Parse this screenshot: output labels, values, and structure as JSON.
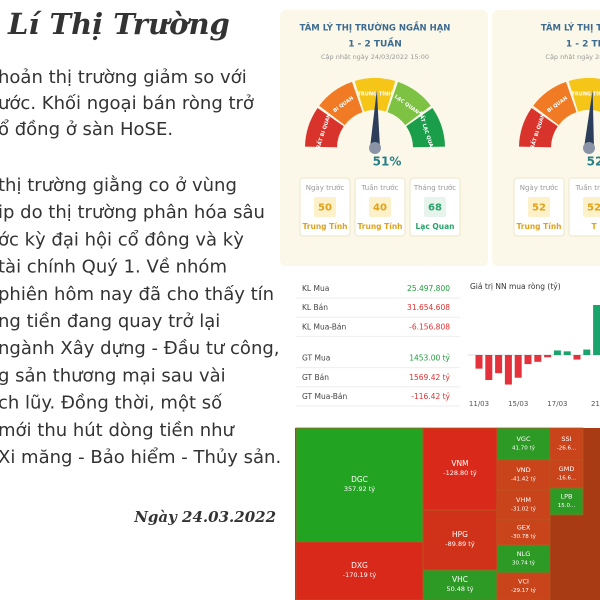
{
  "article": {
    "title": "Lí Thị Trường",
    "lines": [
      "hoản thị trường giảm so với",
      "ước. Khối ngoại bán ròng trở",
      "ổ đồng ở sàn HoSE.",
      "thị trường giằng co ở vùng",
      "ip do thị trường phân hóa sâu",
      "ớc kỳ đại hội cổ đông và kỳ",
      "tài chính Quý 1. Về nhóm",
      "phiên hôm nay đã cho thấy tín",
      "ng tiền đang quay trở lại",
      "ngành Xây dựng - Đầu tư công,",
      "g sản thương mại sau vài",
      "ch lũy. Đồng thời, một số",
      "mới thu hút dòng tiền như",
      "Xi măng - Bảo hiểm - Thủy sản."
    ],
    "date": "Ngày 24.03.2022"
  },
  "sentiment": [
    {
      "title": "TÂM LÝ THỊ TRƯỜNG NGẮN HẠN",
      "period": "1 - 2 TUẦN",
      "updated": "Cập nhật ngày 24/03/2022 15:00",
      "zones": [
        "RẤT BI QUAN",
        "BI QUAN",
        "TRUNG TÍNH",
        "LẠC QUAN",
        "RẤT LẠC QUAN"
      ],
      "value": 51,
      "value_label": "51%",
      "history": [
        {
          "label": "Ngày trước",
          "value": 50,
          "status": "Trung Tính"
        },
        {
          "label": "Tuần trước",
          "value": 40,
          "status": "Trung Tính"
        },
        {
          "label": "Tháng trước",
          "value": 68,
          "status": "Lạc Quan"
        }
      ]
    },
    {
      "title": "TÂM LÝ THỊ TRƯỜNG",
      "period": "1 - 2 THÁ",
      "updated": "Cập nhật ngày 24/03/2022",
      "zones": [
        "RẤT BI QUAN",
        "BI QUAN",
        "TRUNG TÍNH"
      ],
      "value": 52,
      "value_label": "52%",
      "history": [
        {
          "label": "Ngày trước",
          "value": 52,
          "status": "Trung Tính"
        },
        {
          "label": "Tuần trước",
          "value": 52,
          "status": "T"
        }
      ]
    }
  ],
  "foreign": {
    "rows": [
      {
        "label": "KL Mua",
        "value": "25.497.800"
      },
      {
        "label": "KL Bán",
        "value": "31.654.608"
      },
      {
        "label": "KL Mua-Bán",
        "value": "-6.156.808"
      },
      {
        "label": "GT Mua",
        "value": "1453.00 tỷ"
      },
      {
        "label": "GT Bán",
        "value": "1569.42 tỷ"
      },
      {
        "label": "GT Mua-Bán",
        "value": "-116.42 tỷ"
      }
    ],
    "chart_data": {
      "type": "bar",
      "title": "Giá trị NN mua ròng (tỷ)",
      "categories": [
        "11/03",
        null,
        null,
        null,
        "15/03",
        null,
        null,
        null,
        "17/03",
        null,
        null,
        null,
        "21/"
      ],
      "values": [
        -30,
        -55,
        -40,
        -65,
        -50,
        -20,
        -15,
        -5,
        10,
        8,
        -10,
        12,
        110
      ],
      "positive_color": "#1aa36b",
      "negative_color": "#e3323b"
    }
  },
  "heatmap": {
    "tiles": [
      {
        "name": "DGC",
        "value": 357.92,
        "value_label": "357.92 tỷ"
      },
      {
        "name": "DXG",
        "value": -170.19,
        "value_label": "-170.19 tỷ"
      },
      {
        "name": "VNM",
        "value": -128.8,
        "value_label": "-128.80 tỷ"
      },
      {
        "name": "HPG",
        "value": -89.89,
        "value_label": "-89.89 tỷ"
      },
      {
        "name": "VHC",
        "value": 50.48,
        "value_label": "50.48 tỷ"
      },
      {
        "name": "VGC",
        "value": 41.7,
        "value_label": "41.70 tỷ"
      },
      {
        "name": "VND",
        "value": -41.42,
        "value_label": "-41.42 tỷ"
      },
      {
        "name": "VHM",
        "value": -31.02,
        "value_label": "-31.02 tỷ"
      },
      {
        "name": "GEX",
        "value": -30.78,
        "value_label": "-30.78 tỷ"
      },
      {
        "name": "NLG",
        "value": 30.74,
        "value_label": "30.74 tỷ"
      },
      {
        "name": "VCI",
        "value": -29.17,
        "value_label": "-29.17 tỷ"
      },
      {
        "name": "SSI",
        "value": -26.6,
        "value_label": "-26.6..."
      },
      {
        "name": "GMD",
        "value": -16.6,
        "value_label": "-16.6..."
      },
      {
        "name": "LPB",
        "value": 15.0,
        "value_label": "15.0..."
      }
    ]
  }
}
